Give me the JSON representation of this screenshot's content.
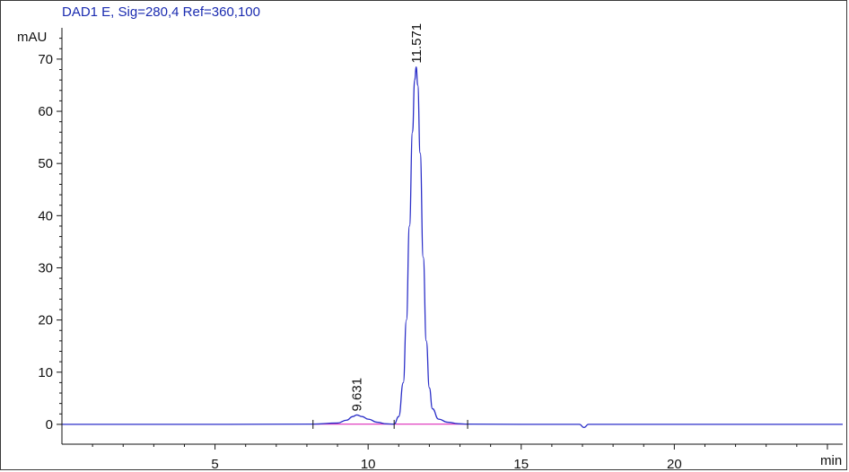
{
  "signal_title": "DAD1 E, Sig=280,4 Ref=360,100",
  "colors": {
    "trace": "#2b2fc8",
    "baseline": "#e040c0",
    "axis": "#111111",
    "title": "#1a2bb0"
  },
  "chart_data": {
    "type": "line",
    "title": "DAD1 E, Sig=280,4 Ref=360,100",
    "xlabel": "min",
    "ylabel": "mAU",
    "xlim": [
      0,
      25.5
    ],
    "ylim": [
      -3.8,
      76
    ],
    "x_ticks": [
      5,
      10,
      15,
      20
    ],
    "x_tick_labels": [
      "5",
      "10",
      "15",
      "20"
    ],
    "y_ticks": [
      0,
      10,
      20,
      30,
      40,
      50,
      60,
      70
    ],
    "y_tick_labels": [
      "0",
      "10",
      "20",
      "30",
      "40",
      "50",
      "60",
      "70"
    ],
    "grid": false,
    "peaks": [
      {
        "retention_time": 9.631,
        "label": "9.631",
        "height": 1.8
      },
      {
        "retention_time": 11.571,
        "label": "11.571",
        "height": 68.5
      }
    ],
    "integration_markers": [
      8.2,
      10.85,
      13.25
    ],
    "series": [
      {
        "x": [
          0,
          5,
          8.2,
          9.0,
          9.3,
          9.5,
          9.631,
          9.8,
          10.0,
          10.3,
          10.6,
          10.85,
          11.0,
          11.15,
          11.25,
          11.35,
          11.45,
          11.52,
          11.571,
          11.62,
          11.7,
          11.8,
          11.9,
          12.0,
          12.1,
          12.3,
          12.6,
          13.0,
          13.25,
          15,
          16.9,
          17.05,
          17.2,
          20,
          25.5
        ],
        "y": [
          0,
          0,
          0.05,
          0.25,
          0.8,
          1.5,
          1.8,
          1.5,
          1.0,
          0.4,
          0.1,
          0.05,
          1.5,
          8,
          20,
          38,
          56,
          66,
          68.5,
          65,
          52,
          32,
          16,
          7,
          3,
          1,
          0.4,
          0.1,
          0.05,
          0,
          0,
          -0.6,
          0,
          0,
          0
        ]
      }
    ]
  }
}
